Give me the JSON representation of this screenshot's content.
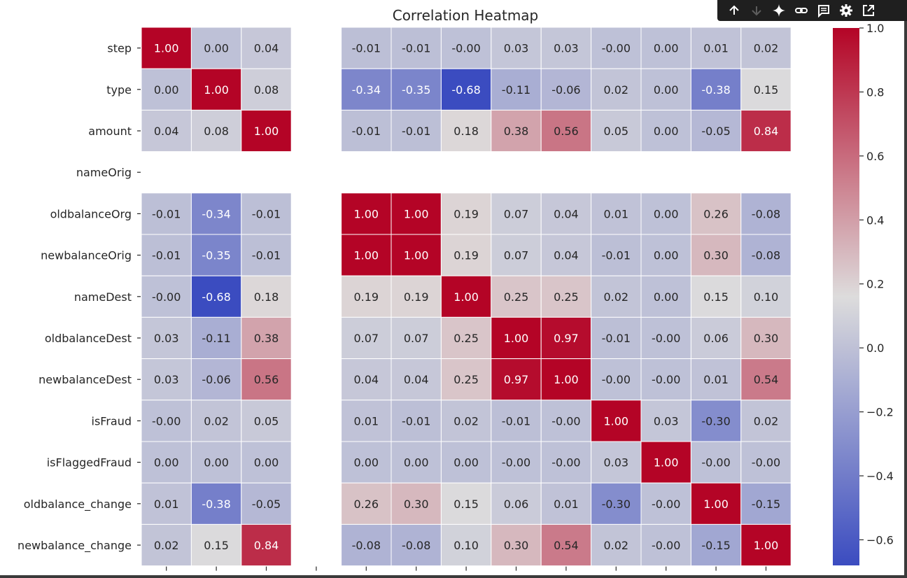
{
  "toolbar": {
    "icons": [
      "arrow-up-icon",
      "arrow-down-icon",
      "sparkle-icon",
      "link-icon",
      "comment-icon",
      "gear-icon",
      "external-open-icon"
    ]
  },
  "colors": {
    "low": "#3b4cc0",
    "mid": "#dddcdc",
    "high": "#b40426",
    "text_dark": "#262626",
    "text_light": "#ffffff"
  },
  "chart_data": {
    "type": "heatmap",
    "title": "Correlation Heatmap",
    "xlabel": "",
    "ylabel": "",
    "colormap": "coolwarm",
    "vmin": -0.68,
    "vmax": 1.0,
    "annotation_format": "0.00",
    "grid": true,
    "row_labels": [
      "step",
      "type",
      "amount",
      "nameOrig",
      "oldbalanceOrg",
      "newbalanceOrig",
      "nameDest",
      "oldbalanceDest",
      "newbalanceDest",
      "isFraud",
      "isFlaggedFraud",
      "oldbalance_change",
      "newbalance_change"
    ],
    "values": [
      [
        1.0,
        0.0,
        0.04,
        null,
        -0.01,
        -0.01,
        -0.0,
        0.03,
        0.03,
        -0.0,
        0.0,
        0.01,
        0.02
      ],
      [
        0.0,
        1.0,
        0.08,
        null,
        -0.34,
        -0.35,
        -0.68,
        -0.11,
        -0.06,
        0.02,
        0.0,
        -0.38,
        0.15
      ],
      [
        0.04,
        0.08,
        1.0,
        null,
        -0.01,
        -0.01,
        0.18,
        0.38,
        0.56,
        0.05,
        0.0,
        -0.05,
        0.84
      ],
      [
        null,
        null,
        null,
        null,
        null,
        null,
        null,
        null,
        null,
        null,
        null,
        null,
        null
      ],
      [
        -0.01,
        -0.34,
        -0.01,
        null,
        1.0,
        1.0,
        0.19,
        0.07,
        0.04,
        0.01,
        0.0,
        0.26,
        -0.08
      ],
      [
        -0.01,
        -0.35,
        -0.01,
        null,
        1.0,
        1.0,
        0.19,
        0.07,
        0.04,
        -0.01,
        0.0,
        0.3,
        -0.08
      ],
      [
        -0.0,
        -0.68,
        0.18,
        null,
        0.19,
        0.19,
        1.0,
        0.25,
        0.25,
        0.02,
        0.0,
        0.15,
        0.1
      ],
      [
        0.03,
        -0.11,
        0.38,
        null,
        0.07,
        0.07,
        0.25,
        1.0,
        0.97,
        -0.01,
        -0.0,
        0.06,
        0.3
      ],
      [
        0.03,
        -0.06,
        0.56,
        null,
        0.04,
        0.04,
        0.25,
        0.97,
        1.0,
        -0.0,
        -0.0,
        0.01,
        0.54
      ],
      [
        -0.0,
        0.02,
        0.05,
        null,
        0.01,
        -0.01,
        0.02,
        -0.01,
        -0.0,
        1.0,
        0.03,
        -0.3,
        0.02
      ],
      [
        0.0,
        0.0,
        0.0,
        null,
        0.0,
        0.0,
        0.0,
        -0.0,
        -0.0,
        0.03,
        1.0,
        -0.0,
        -0.0
      ],
      [
        0.01,
        -0.38,
        -0.05,
        null,
        0.26,
        0.3,
        0.15,
        0.06,
        0.01,
        -0.3,
        -0.0,
        1.0,
        -0.15
      ],
      [
        0.02,
        0.15,
        0.84,
        null,
        -0.08,
        -0.08,
        0.1,
        0.3,
        0.54,
        0.02,
        -0.0,
        -0.15,
        1.0
      ]
    ],
    "colorbar": {
      "ticks": [
        1.0,
        0.8,
        0.6,
        0.4,
        0.2,
        0.0,
        -0.2,
        -0.4,
        -0.6
      ],
      "tick_labels": [
        "1.0",
        "0.8",
        "0.6",
        "0.4",
        "0.2",
        "0.0",
        "−0.2",
        "−0.4",
        "−0.6"
      ]
    }
  }
}
